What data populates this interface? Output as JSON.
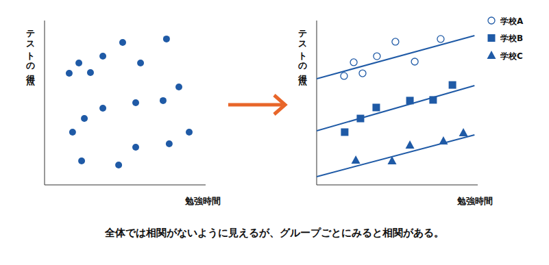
{
  "chart_data": [
    {
      "type": "scatter",
      "x_label": "勉強時間",
      "y_label": "テストの得点",
      "xlim": [
        0,
        100
      ],
      "ylim": [
        0,
        100
      ],
      "tick_labels": false,
      "color": "#1f5aa6",
      "marker": "circle",
      "x": [
        15.3,
        21.3,
        28.5,
        36.2,
        48.5,
        59.6,
        75.7,
        83.4,
        73.6,
        56.6,
        36.2,
        24.7,
        17.4,
        89.8,
        77.4,
        56.6,
        23.0,
        46.0
      ],
      "values": [
        67.9,
        74.2,
        68.3,
        78.3,
        86.7,
        74.2,
        88.8,
        59.6,
        51.3,
        50.0,
        46.7,
        40.4,
        32.1,
        32.1,
        25.0,
        22.9,
        14.6,
        12.1
      ]
    },
    {
      "type": "scatter",
      "x_label": "勉強時間",
      "y_label": "テストの得点",
      "xlim": [
        0,
        100
      ],
      "ylim": [
        0,
        100
      ],
      "tick_labels": false,
      "legend": "top-right",
      "series": [
        {
          "name": "学校A",
          "color": "#1f5aa6",
          "marker": "circle-open",
          "x": [
            17.0,
            23.0,
            28.5,
            37.4,
            48.9,
            60.9,
            77.0
          ],
          "values": [
            66.3,
            74.6,
            67.9,
            78.3,
            87.1,
            75.0,
            88.8
          ],
          "line": {
            "x": [
              0,
              98
            ],
            "y": [
              64.6,
              90.8
            ]
          }
        },
        {
          "name": "学校B",
          "color": "#1f5aa6",
          "marker": "square",
          "x": [
            17.4,
            27.2,
            37.0,
            57.9,
            72.3,
            84.3
          ],
          "values": [
            32.1,
            40.4,
            47.1,
            51.3,
            51.7,
            60.8
          ],
          "line": {
            "x": [
              0,
              98
            ],
            "y": [
              32.9,
              60.4
            ]
          }
        },
        {
          "name": "学校C",
          "color": "#1f5aa6",
          "marker": "triangle",
          "x": [
            24.3,
            46.8,
            57.9,
            78.7,
            91.1
          ],
          "values": [
            15.0,
            14.6,
            24.2,
            26.7,
            31.7
          ],
          "line": {
            "x": [
              0,
              98
            ],
            "y": [
              5.0,
              30.4
            ]
          }
        }
      ]
    }
  ],
  "caption": "全体では相関がないように見えるが、グループごとにみると相関がある。"
}
